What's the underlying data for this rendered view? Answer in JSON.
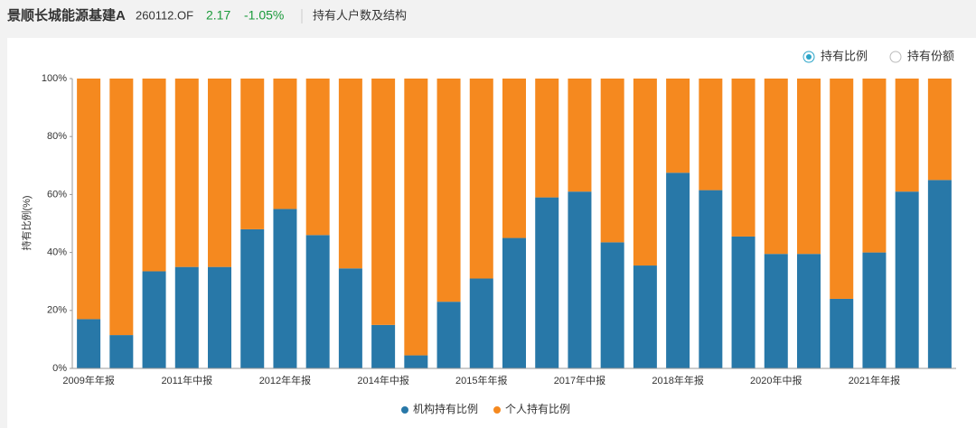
{
  "header": {
    "fund_name": "景顺长城能源基建A",
    "code": "260112.OF",
    "price": "2.17",
    "change": "-1.05%",
    "section": "持有人户数及结构"
  },
  "toggle": {
    "options": [
      "持有比例",
      "持有份额"
    ]
  },
  "chart_data": {
    "type": "stacked-bar",
    "ylabel": "持有比例(%)",
    "categories": [
      "2009年年报",
      null,
      null,
      "2011年中报",
      null,
      null,
      "2012年年报",
      null,
      null,
      "2014年中报",
      null,
      null,
      "2015年年报",
      null,
      null,
      "2017年中报",
      null,
      null,
      "2018年年报",
      null,
      null,
      "2020年中报",
      null,
      null,
      "2021年年报",
      null,
      null
    ],
    "series": [
      {
        "name": "机构持有比例",
        "color": "#2878a8",
        "values": [
          17,
          11.5,
          33.5,
          35,
          35,
          48,
          55,
          46,
          34.5,
          15,
          4.5,
          23,
          31,
          45,
          59,
          61,
          43.5,
          35.5,
          67.5,
          61.5,
          45.5,
          39.5,
          39.5,
          24,
          40,
          61,
          65
        ]
      },
      {
        "name": "个人持有比例",
        "color": "#f5891f",
        "values": [
          83,
          88.5,
          66.5,
          65,
          65,
          52,
          45,
          54,
          65.5,
          85,
          95.5,
          77,
          69,
          55,
          41,
          39,
          56.5,
          64.5,
          32.5,
          38.5,
          54.5,
          60.5,
          60.5,
          76,
          60,
          39,
          35
        ]
      }
    ],
    "ylim": [
      0,
      100
    ],
    "yticks": [
      {
        "value": 0,
        "label": "0%"
      },
      {
        "value": 20,
        "label": "20%"
      },
      {
        "value": 40,
        "label": "40%"
      },
      {
        "value": 60,
        "label": "60%"
      },
      {
        "value": 80,
        "label": "80%"
      },
      {
        "value": 100,
        "label": "100%"
      }
    ],
    "legend": "bottom"
  }
}
